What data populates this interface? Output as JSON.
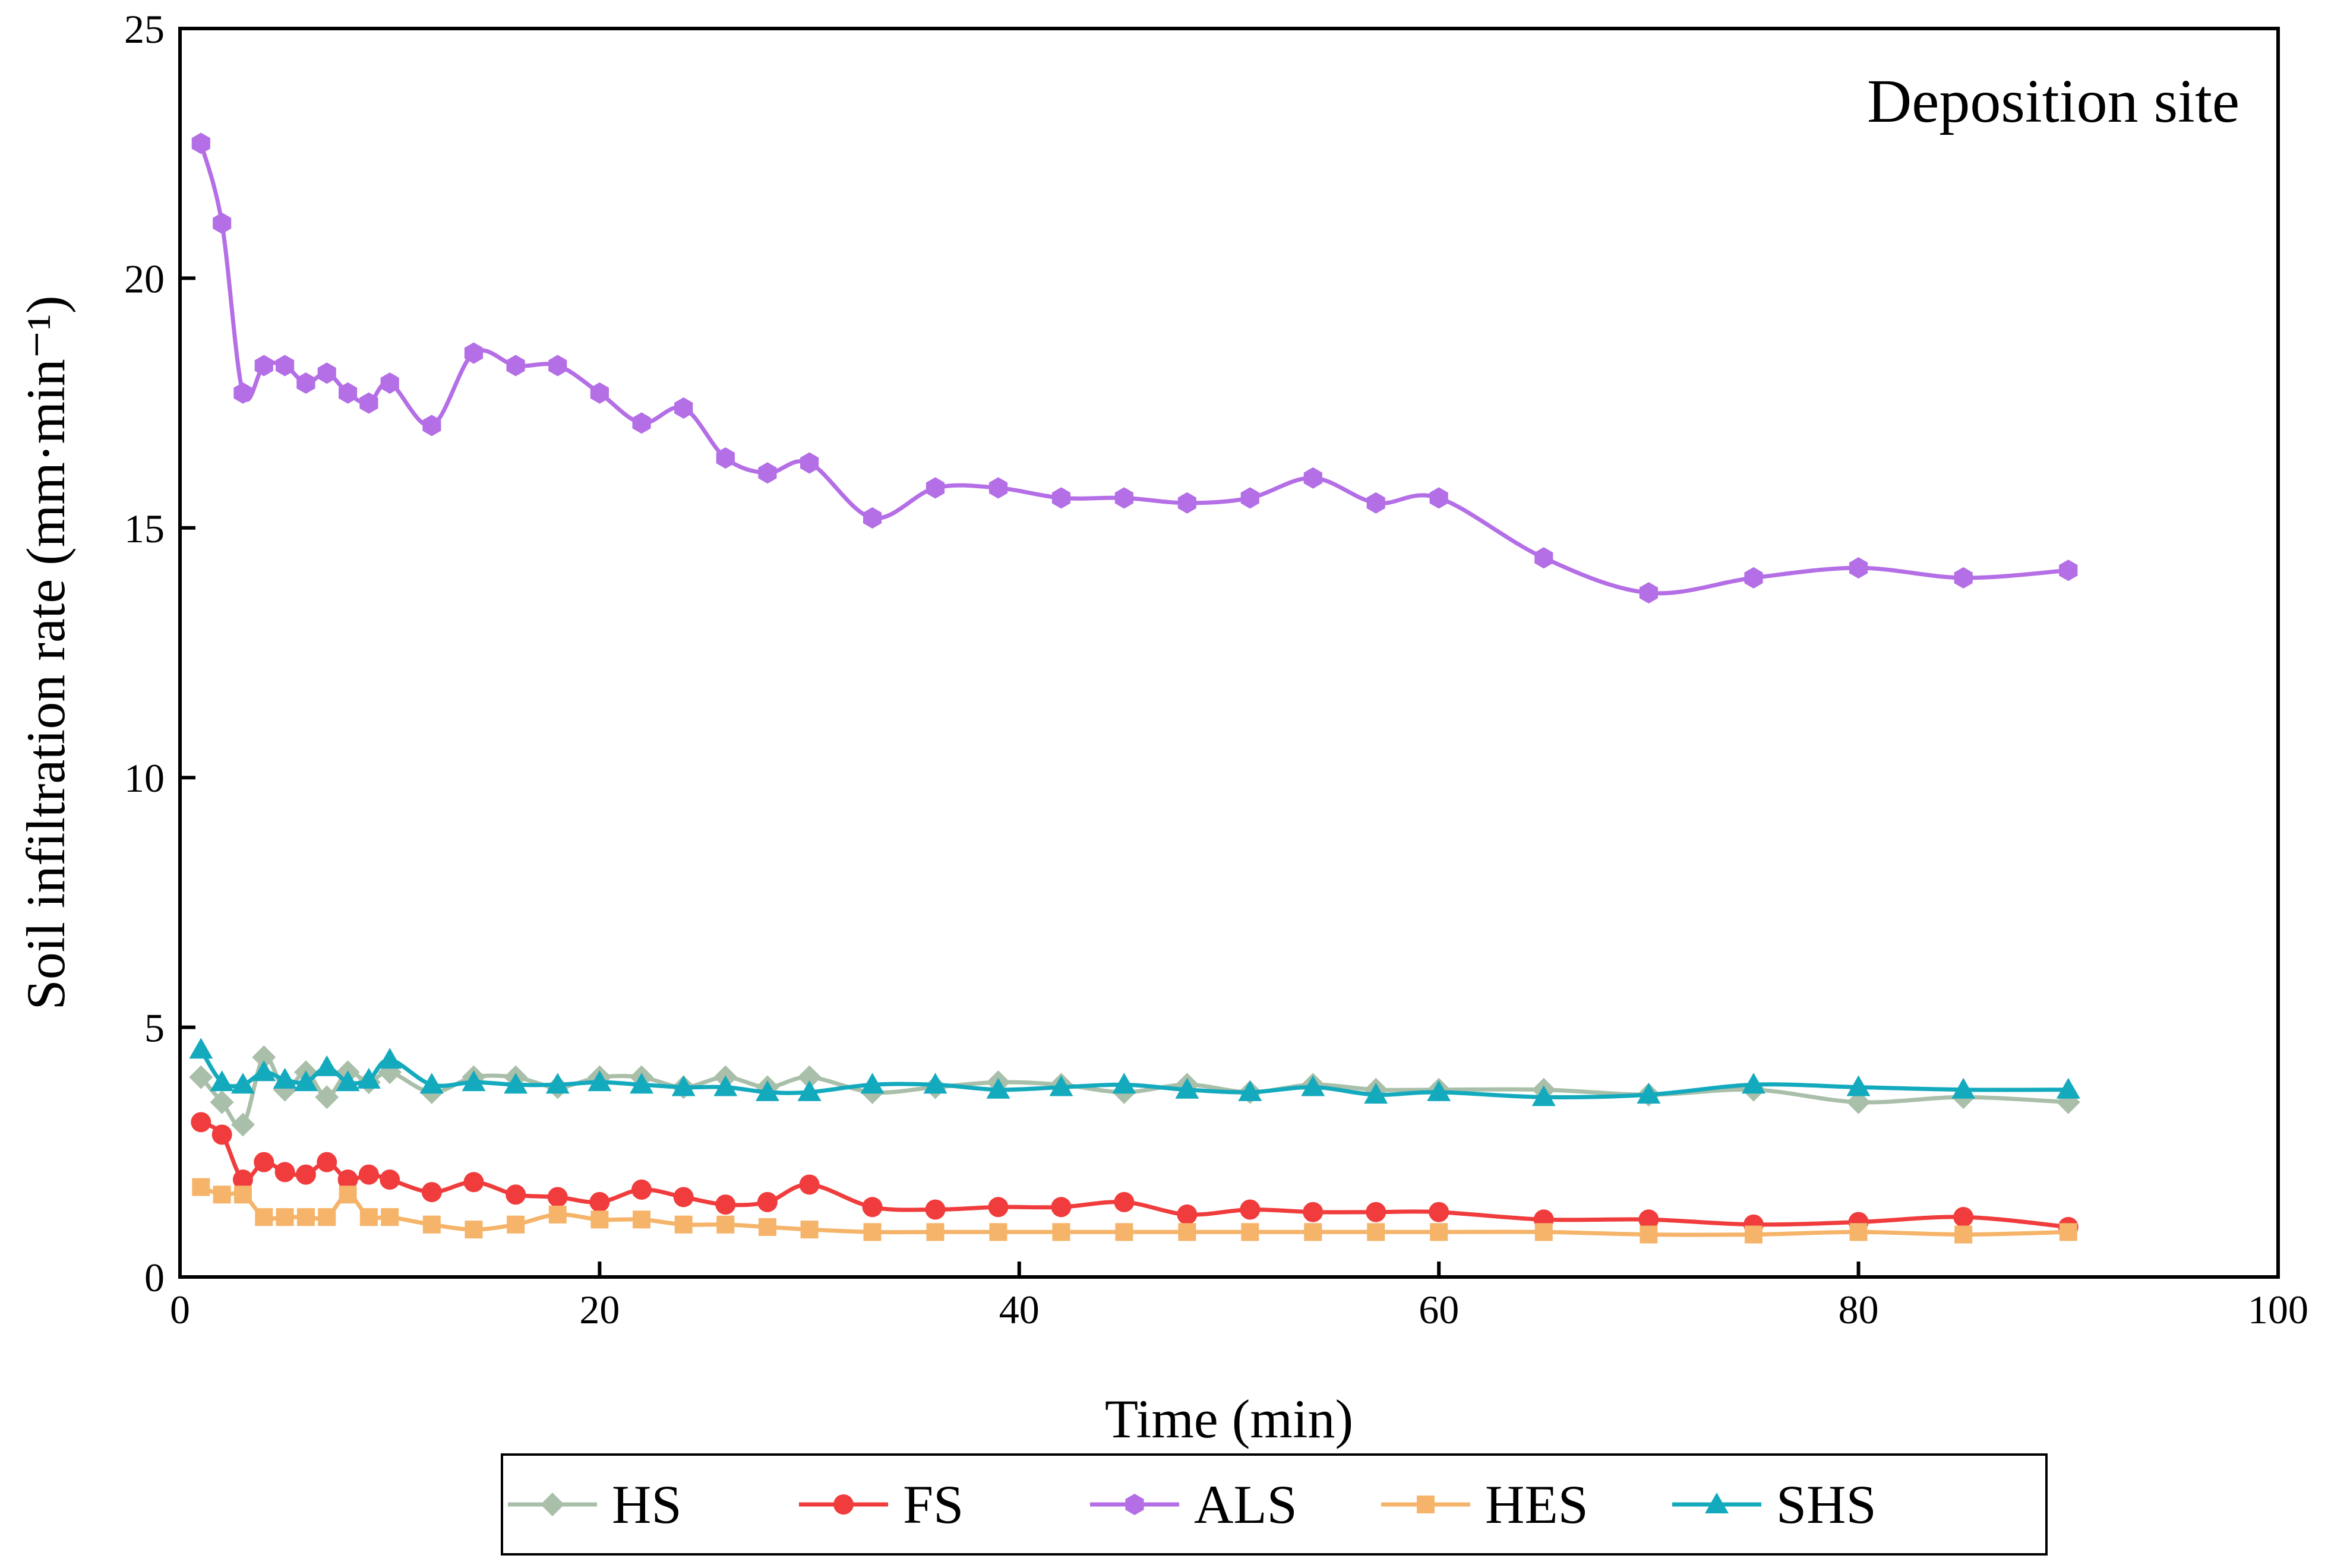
{
  "chart_data": {
    "type": "line",
    "title": "",
    "annotation": "Deposition site",
    "xlabel": "Time (min)",
    "ylabel": "Soil infiltration rate (mm·min⁻¹)",
    "xlim": [
      0,
      100
    ],
    "ylim": [
      0,
      25
    ],
    "xticks": [
      0,
      20,
      40,
      60,
      80,
      100
    ],
    "yticks": [
      0,
      5,
      10,
      15,
      20,
      25
    ],
    "grid": false,
    "legend_position": "bottom",
    "x": [
      1,
      2,
      3,
      4,
      5,
      6,
      7,
      8,
      9,
      10,
      12,
      14,
      16,
      18,
      20,
      22,
      24,
      26,
      28,
      30,
      33,
      36,
      39,
      42,
      45,
      48,
      51,
      54,
      57,
      60,
      65,
      70,
      75,
      80,
      85,
      90
    ],
    "series": [
      {
        "name": "HS",
        "color": "#a9bfa9",
        "marker": "diamond",
        "values": [
          4.0,
          3.5,
          3.05,
          4.4,
          3.75,
          4.1,
          3.6,
          4.1,
          3.9,
          4.1,
          3.7,
          4.0,
          4.0,
          3.8,
          4.0,
          4.0,
          3.8,
          4.0,
          3.8,
          4.0,
          3.7,
          3.8,
          3.9,
          3.85,
          3.7,
          3.85,
          3.7,
          3.85,
          3.75,
          3.75,
          3.75,
          3.65,
          3.75,
          3.5,
          3.6,
          3.5
        ]
      },
      {
        "name": "FS",
        "color": "#f03c3c",
        "marker": "circle",
        "values": [
          3.1,
          2.85,
          1.95,
          2.3,
          2.1,
          2.05,
          2.3,
          1.95,
          2.05,
          1.95,
          1.7,
          1.9,
          1.65,
          1.6,
          1.5,
          1.75,
          1.6,
          1.45,
          1.5,
          1.85,
          1.4,
          1.35,
          1.4,
          1.4,
          1.5,
          1.25,
          1.35,
          1.3,
          1.3,
          1.3,
          1.15,
          1.15,
          1.05,
          1.1,
          1.2,
          1.0
        ]
      },
      {
        "name": "ALS",
        "color": "#b46ee6",
        "marker": "hexagon",
        "values": [
          22.7,
          21.1,
          17.7,
          18.25,
          18.25,
          17.9,
          18.1,
          17.7,
          17.5,
          17.9,
          17.05,
          18.5,
          18.25,
          18.25,
          17.7,
          17.1,
          17.4,
          16.4,
          16.1,
          16.3,
          15.2,
          15.8,
          15.8,
          15.6,
          15.6,
          15.5,
          15.6,
          16.0,
          15.5,
          15.6,
          14.4,
          13.7,
          14.0,
          14.2,
          14.0,
          14.15
        ]
      },
      {
        "name": "HES",
        "color": "#f5b469",
        "marker": "square",
        "values": [
          1.8,
          1.65,
          1.65,
          1.2,
          1.2,
          1.2,
          1.2,
          1.65,
          1.2,
          1.2,
          1.05,
          0.95,
          1.05,
          1.25,
          1.15,
          1.15,
          1.05,
          1.05,
          1.0,
          0.95,
          0.9,
          0.9,
          0.9,
          0.9,
          0.9,
          0.9,
          0.9,
          0.9,
          0.9,
          0.9,
          0.9,
          0.85,
          0.85,
          0.9,
          0.85,
          0.9
        ]
      },
      {
        "name": "SHS",
        "color": "#14aabe",
        "marker": "triangle",
        "values": [
          4.55,
          3.9,
          3.85,
          4.1,
          3.95,
          3.9,
          4.2,
          3.9,
          3.95,
          4.35,
          3.85,
          3.9,
          3.85,
          3.85,
          3.9,
          3.85,
          3.8,
          3.8,
          3.7,
          3.7,
          3.85,
          3.85,
          3.75,
          3.8,
          3.85,
          3.75,
          3.7,
          3.8,
          3.65,
          3.7,
          3.6,
          3.65,
          3.85,
          3.8,
          3.75,
          3.75
        ]
      }
    ]
  }
}
